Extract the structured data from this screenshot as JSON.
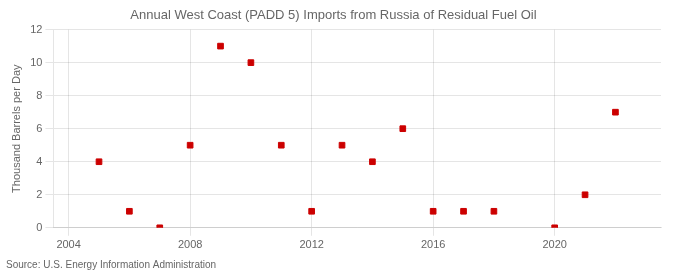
{
  "chart_data": {
    "type": "scatter",
    "title": "Annual West Coast (PADD 5) Imports from Russia of Residual Fuel Oil",
    "ylabel": "Thousand Barrels per Day",
    "annotations": [
      "Source: U.S. Energy Information Administration"
    ],
    "x": [
      2005,
      2006,
      2007,
      2008,
      2009,
      2010,
      2011,
      2012,
      2013,
      2014,
      2015,
      2016,
      2017,
      2018,
      2020,
      2021,
      2022
    ],
    "values": [
      4,
      1,
      0,
      5,
      11,
      10,
      5,
      1,
      5,
      4,
      6,
      1,
      1,
      1,
      0,
      2,
      7
    ],
    "xlim": [
      2003.5,
      2023.5
    ],
    "ylim": [
      0,
      12
    ],
    "xticks": [
      2004,
      2008,
      2012,
      2016,
      2020
    ],
    "yticks": [
      0,
      2,
      4,
      6,
      8,
      10,
      12
    ],
    "color": "#cc0000",
    "marker": "square",
    "grid": true
  }
}
